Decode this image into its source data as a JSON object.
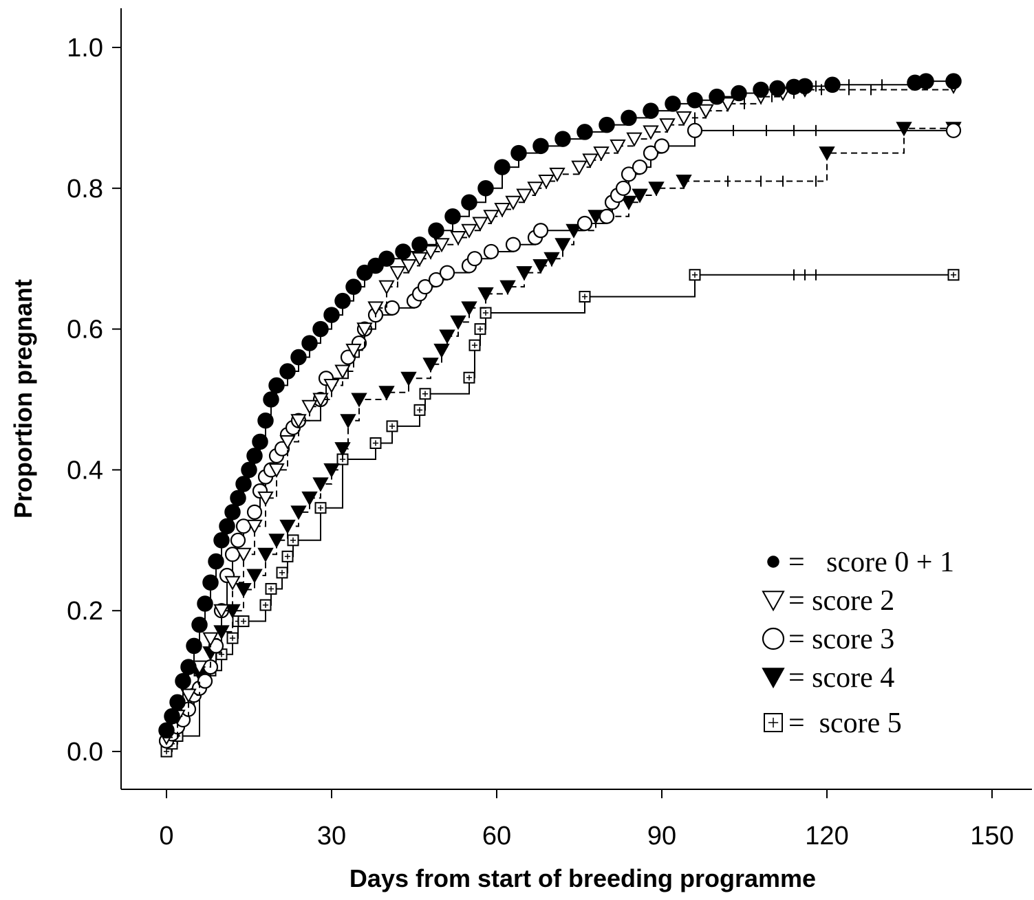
{
  "chart_data": {
    "type": "line",
    "xlabel": "Days from start of breeding programme",
    "ylabel": "Proportion pregnant",
    "xlim": [
      -3,
      147
    ],
    "ylim": [
      -0.055,
      1.055
    ],
    "x_ticks": [
      "0",
      "30",
      "60",
      "90",
      "120",
      "150"
    ],
    "y_ticks": [
      "0.0",
      "0.2",
      "0.4",
      "0.6",
      "0.8",
      "1.0"
    ],
    "legend": [
      {
        "symbol": "filled-circle",
        "label": "=   score 0 + 1"
      },
      {
        "symbol": "open-triangle-down",
        "label": "= score 2"
      },
      {
        "symbol": "open-circle",
        "label": "= score 3"
      },
      {
        "symbol": "filled-triangle-down",
        "label": "= score 4"
      },
      {
        "symbol": "open-square",
        "label": "=  score 5"
      }
    ],
    "series": [
      {
        "symbol": "open-square",
        "line": "solid",
        "x": [
          0,
          1,
          2,
          6,
          8,
          10,
          12,
          13,
          14,
          18,
          19,
          21,
          22,
          23,
          28,
          32,
          38,
          41,
          46,
          47,
          55,
          56,
          57,
          58,
          76,
          96,
          143
        ],
        "y": [
          0.0,
          0.011,
          0.022,
          0.115,
          0.115,
          0.138,
          0.161,
          0.185,
          0.185,
          0.208,
          0.231,
          0.254,
          0.277,
          0.3,
          0.346,
          0.415,
          0.438,
          0.462,
          0.485,
          0.508,
          0.531,
          0.577,
          0.6,
          0.623,
          0.646,
          0.677,
          0.677
        ],
        "censored_x": [
          114,
          116,
          118
        ]
      },
      {
        "symbol": "filled-triangle-down",
        "line": "dashed",
        "x": [
          0,
          2,
          4,
          6,
          8,
          10,
          12,
          14,
          16,
          18,
          20,
          22,
          24,
          26,
          28,
          30,
          32,
          33,
          35,
          40,
          44,
          48,
          50,
          51,
          53,
          55,
          58,
          62,
          65,
          68,
          70,
          72,
          74,
          78,
          84,
          86,
          89,
          94,
          120,
          134,
          143
        ],
        "y": [
          0.02,
          0.05,
          0.08,
          0.11,
          0.14,
          0.17,
          0.2,
          0.23,
          0.25,
          0.28,
          0.3,
          0.32,
          0.34,
          0.36,
          0.38,
          0.4,
          0.43,
          0.47,
          0.5,
          0.51,
          0.53,
          0.55,
          0.57,
          0.59,
          0.61,
          0.63,
          0.65,
          0.66,
          0.68,
          0.69,
          0.7,
          0.72,
          0.74,
          0.76,
          0.78,
          0.79,
          0.8,
          0.81,
          0.85,
          0.885,
          0.885
        ],
        "censored_x": [
          102,
          108,
          112,
          118
        ]
      },
      {
        "symbol": "open-circle",
        "line": "solid",
        "x": [
          0,
          1,
          2,
          3,
          4,
          5,
          6,
          7,
          8,
          9,
          10,
          11,
          12,
          13,
          14,
          16,
          17,
          18,
          19,
          20,
          21,
          22,
          23,
          24,
          28,
          29,
          33,
          35,
          36,
          38,
          41,
          45,
          46,
          47,
          49,
          51,
          55,
          56,
          59,
          63,
          67,
          68,
          76,
          80,
          81,
          82,
          83,
          84,
          86,
          88,
          90,
          96,
          143
        ],
        "y": [
          0.015,
          0.025,
          0.035,
          0.045,
          0.06,
          0.08,
          0.09,
          0.1,
          0.12,
          0.15,
          0.2,
          0.25,
          0.28,
          0.3,
          0.32,
          0.34,
          0.37,
          0.39,
          0.4,
          0.42,
          0.43,
          0.45,
          0.46,
          0.47,
          0.5,
          0.53,
          0.56,
          0.58,
          0.6,
          0.62,
          0.63,
          0.64,
          0.65,
          0.66,
          0.67,
          0.68,
          0.69,
          0.7,
          0.71,
          0.72,
          0.73,
          0.74,
          0.75,
          0.76,
          0.78,
          0.79,
          0.8,
          0.82,
          0.83,
          0.85,
          0.86,
          0.882,
          0.882
        ],
        "censored_x": [
          103,
          109,
          114,
          118
        ]
      },
      {
        "symbol": "open-triangle-down",
        "line": "dashed",
        "x": [
          0,
          2,
          4,
          6,
          8,
          10,
          12,
          14,
          16,
          18,
          20,
          22,
          24,
          26,
          28,
          30,
          32,
          34,
          36,
          38,
          40,
          42,
          44,
          46,
          48,
          50,
          53,
          55,
          57,
          59,
          61,
          63,
          65,
          67,
          69,
          71,
          75,
          77,
          79,
          82,
          85,
          88,
          91,
          94,
          98,
          102,
          108,
          112,
          116,
          143
        ],
        "y": [
          0.02,
          0.05,
          0.08,
          0.12,
          0.16,
          0.2,
          0.24,
          0.28,
          0.32,
          0.36,
          0.4,
          0.44,
          0.47,
          0.49,
          0.5,
          0.52,
          0.54,
          0.57,
          0.6,
          0.63,
          0.66,
          0.68,
          0.69,
          0.7,
          0.71,
          0.72,
          0.73,
          0.74,
          0.75,
          0.76,
          0.77,
          0.78,
          0.79,
          0.8,
          0.81,
          0.82,
          0.83,
          0.84,
          0.85,
          0.86,
          0.87,
          0.88,
          0.89,
          0.9,
          0.91,
          0.92,
          0.93,
          0.935,
          0.94,
          0.945
        ],
        "censored_x": [
          96,
          105,
          110,
          114,
          119,
          124,
          128
        ]
      },
      {
        "symbol": "filled-circle",
        "line": "solid",
        "x": [
          0,
          1,
          2,
          3,
          4,
          5,
          6,
          7,
          8,
          9,
          10,
          11,
          12,
          13,
          14,
          15,
          16,
          17,
          18,
          19,
          20,
          22,
          24,
          26,
          28,
          30,
          32,
          34,
          36,
          38,
          40,
          43,
          46,
          49,
          52,
          55,
          58,
          61,
          64,
          68,
          72,
          76,
          80,
          84,
          88,
          92,
          96,
          100,
          104,
          108,
          111,
          114,
          116,
          121,
          136,
          138,
          143
        ],
        "y": [
          0.03,
          0.05,
          0.07,
          0.1,
          0.12,
          0.15,
          0.18,
          0.21,
          0.24,
          0.27,
          0.3,
          0.32,
          0.34,
          0.36,
          0.38,
          0.4,
          0.42,
          0.44,
          0.47,
          0.5,
          0.52,
          0.54,
          0.56,
          0.58,
          0.6,
          0.62,
          0.64,
          0.66,
          0.68,
          0.69,
          0.7,
          0.71,
          0.72,
          0.74,
          0.76,
          0.78,
          0.8,
          0.83,
          0.85,
          0.86,
          0.87,
          0.88,
          0.89,
          0.9,
          0.91,
          0.92,
          0.925,
          0.93,
          0.935,
          0.94,
          0.942,
          0.944,
          0.945,
          0.947,
          0.95,
          0.952,
          0.952
        ],
        "censored_x": [
          118,
          124,
          130
        ]
      }
    ]
  }
}
